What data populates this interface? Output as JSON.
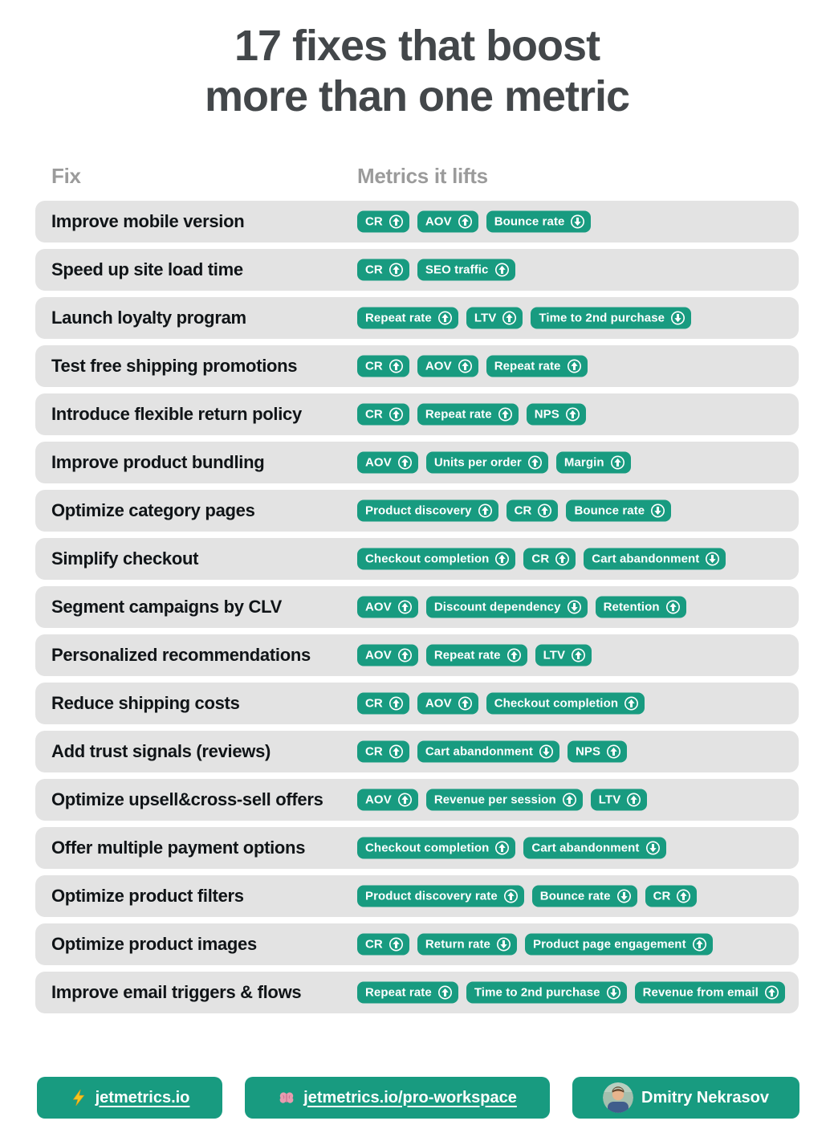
{
  "title": {
    "line1": "17 fixes that boost",
    "line2": "more than one metric"
  },
  "columns": {
    "fix": "Fix",
    "metrics": "Metrics it lifts"
  },
  "rows": [
    {
      "fix": "Improve mobile version",
      "metrics": [
        {
          "label": "CR",
          "direction": "up"
        },
        {
          "label": "AOV",
          "direction": "up"
        },
        {
          "label": "Bounce rate",
          "direction": "down"
        }
      ]
    },
    {
      "fix": "Speed up site load time",
      "metrics": [
        {
          "label": "CR",
          "direction": "up"
        },
        {
          "label": "SEO traffic",
          "direction": "up"
        }
      ]
    },
    {
      "fix": "Launch loyalty program",
      "metrics": [
        {
          "label": "Repeat rate",
          "direction": "up"
        },
        {
          "label": "LTV",
          "direction": "up"
        },
        {
          "label": "Time to 2nd purchase",
          "direction": "down"
        }
      ]
    },
    {
      "fix": "Test free shipping promotions",
      "metrics": [
        {
          "label": "CR",
          "direction": "up"
        },
        {
          "label": "AOV",
          "direction": "up"
        },
        {
          "label": "Repeat rate",
          "direction": "up"
        }
      ]
    },
    {
      "fix": "Introduce flexible return policy",
      "metrics": [
        {
          "label": "CR",
          "direction": "up"
        },
        {
          "label": "Repeat rate",
          "direction": "up"
        },
        {
          "label": "NPS",
          "direction": "up"
        }
      ]
    },
    {
      "fix": "Improve product bundling",
      "metrics": [
        {
          "label": "AOV",
          "direction": "up"
        },
        {
          "label": "Units per order",
          "direction": "up"
        },
        {
          "label": "Margin",
          "direction": "up"
        }
      ]
    },
    {
      "fix": "Optimize category pages",
      "metrics": [
        {
          "label": "Product discovery",
          "direction": "up"
        },
        {
          "label": "CR",
          "direction": "up"
        },
        {
          "label": "Bounce rate",
          "direction": "down"
        }
      ]
    },
    {
      "fix": "Simplify checkout",
      "metrics": [
        {
          "label": "Checkout completion",
          "direction": "up"
        },
        {
          "label": "CR",
          "direction": "up"
        },
        {
          "label": "Cart abandonment",
          "direction": "down"
        }
      ]
    },
    {
      "fix": "Segment campaigns by CLV",
      "metrics": [
        {
          "label": "AOV",
          "direction": "up"
        },
        {
          "label": "Discount dependency",
          "direction": "down"
        },
        {
          "label": "Retention",
          "direction": "up"
        }
      ]
    },
    {
      "fix": "Personalized recommendations",
      "metrics": [
        {
          "label": "AOV",
          "direction": "up"
        },
        {
          "label": "Repeat rate",
          "direction": "up"
        },
        {
          "label": "LTV",
          "direction": "up"
        }
      ]
    },
    {
      "fix": "Reduce shipping costs",
      "metrics": [
        {
          "label": "CR",
          "direction": "up"
        },
        {
          "label": "AOV",
          "direction": "up"
        },
        {
          "label": "Checkout completion",
          "direction": "up"
        }
      ]
    },
    {
      "fix": "Add trust signals (reviews)",
      "metrics": [
        {
          "label": "CR",
          "direction": "up"
        },
        {
          "label": "Cart abandonment",
          "direction": "down"
        },
        {
          "label": "NPS",
          "direction": "up"
        }
      ]
    },
    {
      "fix": "Optimize upsell&cross-sell offers",
      "metrics": [
        {
          "label": "AOV",
          "direction": "up"
        },
        {
          "label": "Revenue per session",
          "direction": "up"
        },
        {
          "label": "LTV",
          "direction": "up"
        }
      ]
    },
    {
      "fix": "Offer multiple payment options",
      "metrics": [
        {
          "label": "Checkout completion",
          "direction": "up"
        },
        {
          "label": "Cart abandonment",
          "direction": "down"
        }
      ]
    },
    {
      "fix": "Optimize product filters",
      "metrics": [
        {
          "label": "Product discovery rate",
          "direction": "up"
        },
        {
          "label": "Bounce rate",
          "direction": "down"
        },
        {
          "label": "CR",
          "direction": "up"
        }
      ]
    },
    {
      "fix": "Optimize product images",
      "metrics": [
        {
          "label": "CR",
          "direction": "up"
        },
        {
          "label": "Return rate",
          "direction": "down"
        },
        {
          "label": "Product page engagement",
          "direction": "up"
        }
      ]
    },
    {
      "fix": "Improve email triggers & flows",
      "metrics": [
        {
          "label": "Repeat rate",
          "direction": "up"
        },
        {
          "label": "Time to 2nd purchase",
          "direction": "down"
        },
        {
          "label": "Revenue from email",
          "direction": "up"
        }
      ]
    }
  ],
  "footer": {
    "site_label": "jetmetrics.io",
    "workspace_label": "jetmetrics.io/pro-workspace",
    "author_label": "Dmitry Nekrasov"
  },
  "icons": {
    "metric_up": "arrow-up-icon",
    "metric_down": "arrow-down-icon",
    "site": "lightning-icon",
    "workspace": "brain-icon",
    "author": "avatar"
  },
  "colors": {
    "accent": "#189b80",
    "row_background": "#e3e3e3",
    "title_text": "#43474a",
    "column_header_text": "#9b9b9b",
    "fix_text": "#101417",
    "badge_text": "#ffffff"
  }
}
